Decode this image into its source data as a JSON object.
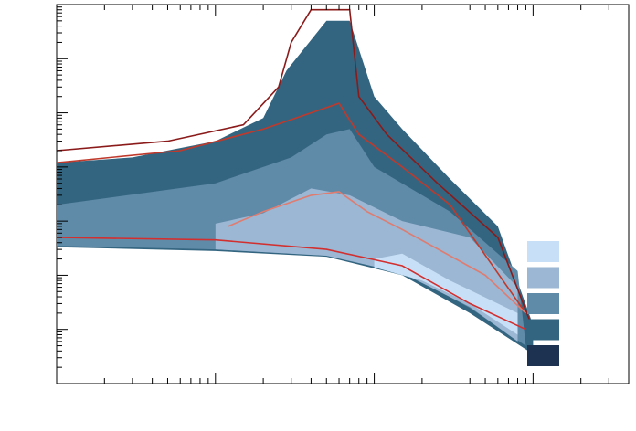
{
  "chart_data": {
    "type": "heatmap",
    "title": "",
    "xlabel": "",
    "ylabel": "",
    "x_scale": "log",
    "y_scale": "log",
    "xlim": [
      10,
      40000
    ],
    "ylim": [
      0.001,
      10000
    ],
    "grid": false,
    "legend": {
      "position": "bottom-right",
      "entries": [
        {
          "label": "",
          "color": "#c8e0f7"
        },
        {
          "label": "",
          "color": "#9bb7d3"
        },
        {
          "label": "",
          "color": "#5f8aa8"
        },
        {
          "label": "",
          "color": "#336580"
        },
        {
          "label": "",
          "color": "#1c3250"
        }
      ]
    },
    "density_layers": [
      {
        "name": "",
        "color": "#336580",
        "upper": [
          [
            10,
            12
          ],
          [
            30,
            15
          ],
          [
            100,
            30
          ],
          [
            200,
            80
          ],
          [
            280,
            600
          ],
          [
            500,
            5000
          ],
          [
            700,
            5000
          ],
          [
            1000,
            200
          ],
          [
            1500,
            50
          ],
          [
            3000,
            6
          ],
          [
            6000,
            0.8
          ],
          [
            10000,
            0.012
          ]
        ],
        "lower": [
          [
            10,
            0.33
          ],
          [
            100,
            0.28
          ],
          [
            500,
            0.22
          ],
          [
            1500,
            0.1
          ],
          [
            4000,
            0.02
          ],
          [
            10000,
            0.0035
          ]
        ]
      },
      {
        "name": "",
        "color": "#5f8aa8",
        "upper": [
          [
            10,
            2.0
          ],
          [
            100,
            5
          ],
          [
            300,
            15
          ],
          [
            500,
            40
          ],
          [
            700,
            50
          ],
          [
            1000,
            10
          ],
          [
            3000,
            1.5
          ],
          [
            8000,
            0.12
          ]
        ],
        "lower": [
          [
            10,
            0.35
          ],
          [
            100,
            0.3
          ],
          [
            500,
            0.23
          ],
          [
            1500,
            0.12
          ],
          [
            4000,
            0.025
          ],
          [
            9000,
            0.005
          ]
        ]
      },
      {
        "name": "",
        "color": "#9bb7d3",
        "upper": [
          [
            100,
            0.9
          ],
          [
            200,
            1.4
          ],
          [
            400,
            4
          ],
          [
            700,
            3
          ],
          [
            1500,
            1
          ],
          [
            4000,
            0.5
          ],
          [
            8000,
            0.06
          ]
        ],
        "lower": [
          [
            100,
            0.3
          ],
          [
            500,
            0.23
          ],
          [
            1500,
            0.11
          ],
          [
            4000,
            0.026
          ],
          [
            8000,
            0.006
          ]
        ]
      },
      {
        "name": "",
        "color": "#c8e0f7",
        "upper": [
          [
            1000,
            0.2
          ],
          [
            1500,
            0.25
          ],
          [
            3000,
            0.08
          ],
          [
            8000,
            0.02
          ]
        ],
        "lower": [
          [
            1000,
            0.14
          ],
          [
            2000,
            0.08
          ],
          [
            4000,
            0.03
          ],
          [
            8000,
            0.008
          ]
        ]
      }
    ],
    "contours": [
      {
        "name": "",
        "color": "#8b1a1a",
        "points": [
          [
            10,
            20
          ],
          [
            50,
            30
          ],
          [
            150,
            60
          ],
          [
            250,
            300
          ],
          [
            300,
            2000
          ],
          [
            400,
            8000
          ],
          [
            700,
            8000
          ],
          [
            800,
            200
          ],
          [
            1200,
            40
          ],
          [
            2500,
            5
          ],
          [
            6000,
            0.5
          ],
          [
            10000,
            0.01
          ]
        ]
      },
      {
        "name": "",
        "color": "#c0392b",
        "points": [
          [
            10,
            12
          ],
          [
            60,
            20
          ],
          [
            200,
            50
          ],
          [
            400,
            100
          ],
          [
            600,
            150
          ],
          [
            800,
            40
          ],
          [
            1500,
            10
          ],
          [
            3000,
            2
          ],
          [
            9000,
            0.02
          ]
        ]
      },
      {
        "name": "",
        "color": "#e07b6f",
        "points": [
          [
            120,
            0.8
          ],
          [
            200,
            1.5
          ],
          [
            400,
            3
          ],
          [
            600,
            3.5
          ],
          [
            900,
            1.5
          ],
          [
            1500,
            0.7
          ],
          [
            5000,
            0.1
          ],
          [
            9000,
            0.02
          ]
        ]
      },
      {
        "name": "",
        "color": "#d32f2f",
        "points": [
          [
            10,
            0.5
          ],
          [
            100,
            0.45
          ],
          [
            500,
            0.3
          ],
          [
            1500,
            0.15
          ],
          [
            4000,
            0.03
          ],
          [
            9000,
            0.01
          ]
        ]
      }
    ]
  }
}
